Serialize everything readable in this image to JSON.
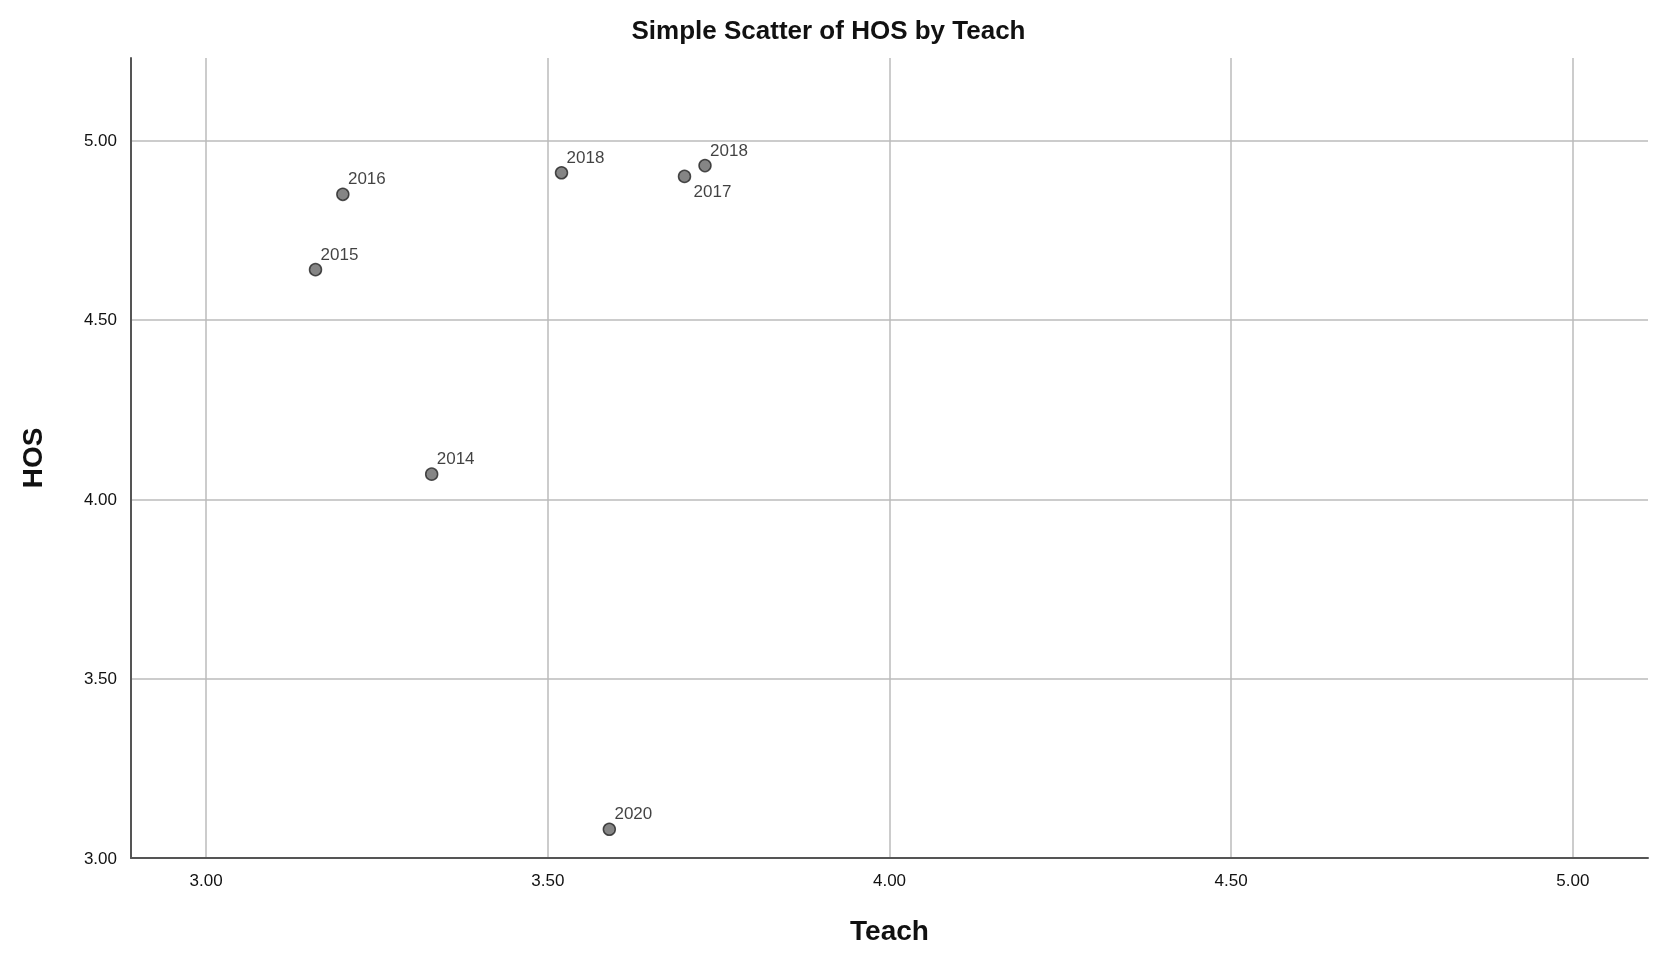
{
  "chart_data": {
    "type": "scatter",
    "title": "Simple Scatter of HOS by Teach",
    "xlabel": "Teach",
    "ylabel": "HOS",
    "x": [
      3.33,
      3.16,
      3.2,
      3.7,
      3.52,
      3.73,
      3.59
    ],
    "values": [
      4.07,
      4.64,
      4.85,
      4.9,
      4.91,
      4.93,
      3.08
    ],
    "color": "#666666",
    "marker": "circle",
    "grid": true,
    "xlim": [
      2.89,
      5.11
    ],
    "ylim": [
      3.0,
      5.23
    ],
    "xticks": [
      {
        "value": 3,
        "label": "3.00"
      },
      {
        "value": 3.5,
        "label": "3.50"
      },
      {
        "value": 4,
        "label": "4.00"
      },
      {
        "value": 4.5,
        "label": "4.50"
      },
      {
        "value": 5,
        "label": "5.00"
      }
    ],
    "yticks": [
      {
        "value": 3,
        "label": "3.00"
      },
      {
        "value": 3.5,
        "label": "3.50"
      },
      {
        "value": 4,
        "label": "4.00"
      },
      {
        "value": 4.5,
        "label": "4.50"
      },
      {
        "value": 5,
        "label": "5.00"
      }
    ],
    "annotations": [
      {
        "text": "2014",
        "x": 3.33,
        "y": 4.07
      },
      {
        "text": "2015",
        "x": 3.16,
        "y": 4.64
      },
      {
        "text": "2016",
        "x": 3.2,
        "y": 4.85
      },
      {
        "text": "2017",
        "x": 3.7,
        "y": 4.9
      },
      {
        "text": "2018",
        "x": 3.52,
        "y": 4.91
      },
      {
        "text": "2018",
        "x": 3.73,
        "y": 4.93
      },
      {
        "text": "2020",
        "x": 3.59,
        "y": 3.08
      }
    ]
  }
}
